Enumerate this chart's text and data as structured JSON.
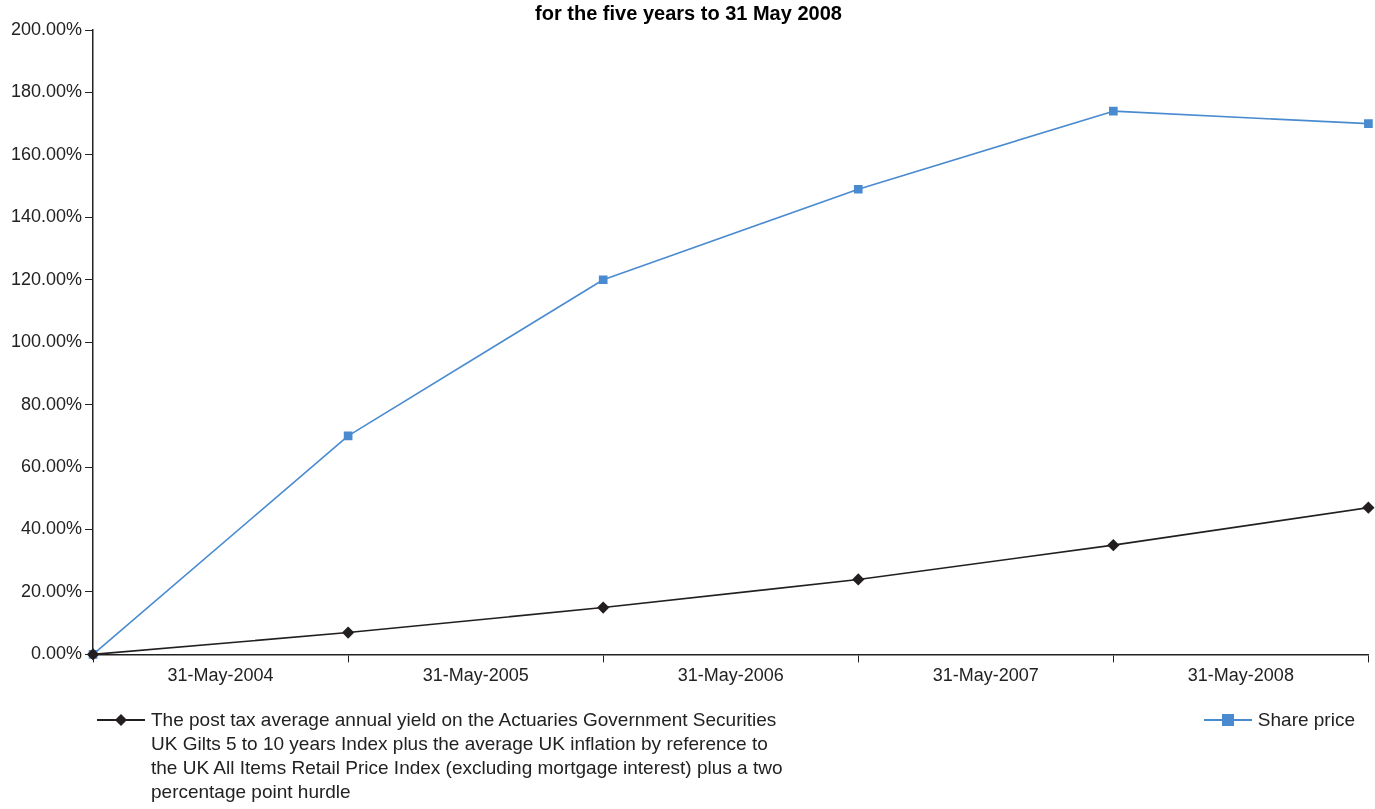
{
  "chart_data": {
    "type": "line",
    "title": "for the five years to 31 May 2008",
    "categories": [
      null,
      "31-May-2004",
      null,
      "31-May-2005",
      null,
      "31-May-2006",
      null,
      "31-May-2007",
      null,
      "31-May-2008",
      null
    ],
    "ylim": [
      0,
      200
    ],
    "yticks": [
      {
        "value": 0,
        "label": "0.00%"
      },
      {
        "value": 20,
        "label": "20.00%"
      },
      {
        "value": 40,
        "label": "40.00%"
      },
      {
        "value": 60,
        "label": "60.00%"
      },
      {
        "value": 80,
        "label": "80.00%"
      },
      {
        "value": 100,
        "label": "100.00%"
      },
      {
        "value": 120,
        "label": "120.00%"
      },
      {
        "value": 140,
        "label": "140.00%"
      },
      {
        "value": 160,
        "label": "160.00%"
      },
      {
        "value": 180,
        "label": "180.00%"
      },
      {
        "value": 200,
        "label": "200.00%"
      }
    ],
    "grid": false,
    "legend": "bottom",
    "line_style": "solid",
    "series": [
      {
        "name": "The post tax average annual yield on the Actuaries Government Securities UK Gilts 5 to 10 years Index plus the average UK inflation by reference to the UK All Items Retail Price Index (excluding mortgage interest) plus a two percentage point hurdle",
        "color": "#231f20",
        "marker": "diamond",
        "values": [
          0,
          null,
          7,
          null,
          15,
          null,
          24,
          null,
          35,
          null,
          47
        ]
      },
      {
        "name": "Share price",
        "color": "#4a8bd0",
        "marker": "square",
        "values": [
          0,
          null,
          70,
          null,
          120,
          null,
          149,
          null,
          174,
          null,
          170
        ]
      }
    ]
  }
}
